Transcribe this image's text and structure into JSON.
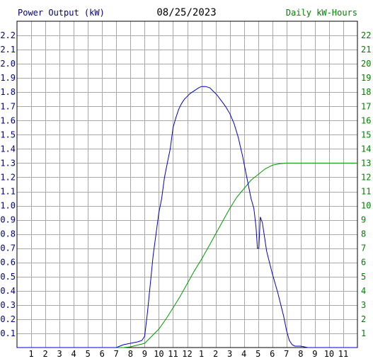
{
  "chart_data": {
    "type": "line",
    "title": "08/25/2023",
    "y_left_label": "Power Output (kW)",
    "y_right_label": "Daily kW-Hours",
    "colors": {
      "power": "#0000cc",
      "energy": "#009900",
      "grid": "#a8a8a8",
      "frame": "#000000",
      "left_axis_text": "#000080",
      "right_axis_text": "#008000"
    },
    "grid": true,
    "x_range_hours": [
      0,
      24
    ],
    "x_tick_labels": [
      "1",
      "2",
      "3",
      "4",
      "5",
      "6",
      "7",
      "8",
      "9",
      "10",
      "11",
      "12",
      "1",
      "2",
      "3",
      "4",
      "5",
      "6",
      "7",
      "8",
      "9",
      "10",
      "11"
    ],
    "y_left_range": [
      0,
      2.3
    ],
    "y_left_ticks": [
      "0.1",
      "0.2",
      "0.3",
      "0.4",
      "0.5",
      "0.6",
      "0.7",
      "0.8",
      "0.9",
      "1.0",
      "1.1",
      "1.2",
      "1.3",
      "1.4",
      "1.5",
      "1.6",
      "1.7",
      "1.8",
      "1.9",
      "2.0",
      "2.1",
      "2.2"
    ],
    "y_right_range": [
      0,
      23
    ],
    "y_right_ticks": [
      "1",
      "2",
      "3",
      "4",
      "5",
      "6",
      "7",
      "8",
      "9",
      "10",
      "11",
      "12",
      "13",
      "14",
      "15",
      "16",
      "17",
      "18",
      "19",
      "20",
      "21",
      "22"
    ],
    "series": [
      {
        "name": "Power Output (kW)",
        "axis": "left",
        "x": [
          0,
          7.0,
          7.5,
          8.0,
          8.5,
          8.8,
          9.0,
          9.2,
          9.4,
          9.6,
          9.8,
          10.0,
          10.2,
          10.4,
          10.6,
          10.8,
          11.0,
          11.2,
          11.4,
          11.6,
          11.8,
          12.0,
          12.2,
          12.5,
          12.8,
          13.0,
          13.3,
          13.6,
          13.9,
          14.1,
          14.4,
          14.7,
          15.0,
          15.3,
          15.6,
          15.9,
          16.1,
          16.3,
          16.5,
          16.7,
          16.85,
          16.95,
          17.05,
          17.15,
          17.3,
          17.45,
          17.6,
          17.8,
          18.0,
          18.2,
          18.4,
          18.6,
          18.8,
          19.0,
          19.2,
          19.4,
          19.6,
          19.8,
          20.0,
          20.5,
          21.0,
          21.5,
          24
        ],
        "y": [
          0,
          0,
          0.02,
          0.03,
          0.04,
          0.05,
          0.08,
          0.25,
          0.45,
          0.65,
          0.8,
          0.95,
          1.05,
          1.2,
          1.3,
          1.4,
          1.55,
          1.62,
          1.68,
          1.72,
          1.75,
          1.77,
          1.79,
          1.81,
          1.83,
          1.84,
          1.84,
          1.83,
          1.8,
          1.78,
          1.74,
          1.7,
          1.65,
          1.58,
          1.48,
          1.35,
          1.25,
          1.15,
          1.05,
          0.98,
          0.85,
          0.7,
          0.7,
          0.92,
          0.88,
          0.78,
          0.68,
          0.6,
          0.52,
          0.45,
          0.38,
          0.3,
          0.22,
          0.12,
          0.05,
          0.02,
          0.01,
          0.01,
          0.01,
          0,
          0,
          0,
          0
        ]
      },
      {
        "name": "Daily kW-Hours",
        "axis": "right",
        "x": [
          0,
          7.5,
          8.0,
          9.0,
          9.5,
          10.0,
          10.5,
          11.0,
          11.5,
          12.0,
          12.5,
          13.0,
          13.5,
          14.0,
          14.5,
          15.0,
          15.5,
          16.0,
          16.5,
          17.0,
          17.5,
          18.0,
          18.5,
          19.0,
          19.5,
          20.0,
          24
        ],
        "y": [
          0,
          0,
          0.05,
          0.3,
          0.8,
          1.3,
          2.0,
          2.8,
          3.6,
          4.5,
          5.4,
          6.2,
          7.1,
          8.0,
          8.9,
          9.8,
          10.6,
          11.2,
          11.8,
          12.2,
          12.6,
          12.85,
          12.95,
          13.0,
          13.0,
          13.0,
          13.0
        ]
      }
    ]
  }
}
